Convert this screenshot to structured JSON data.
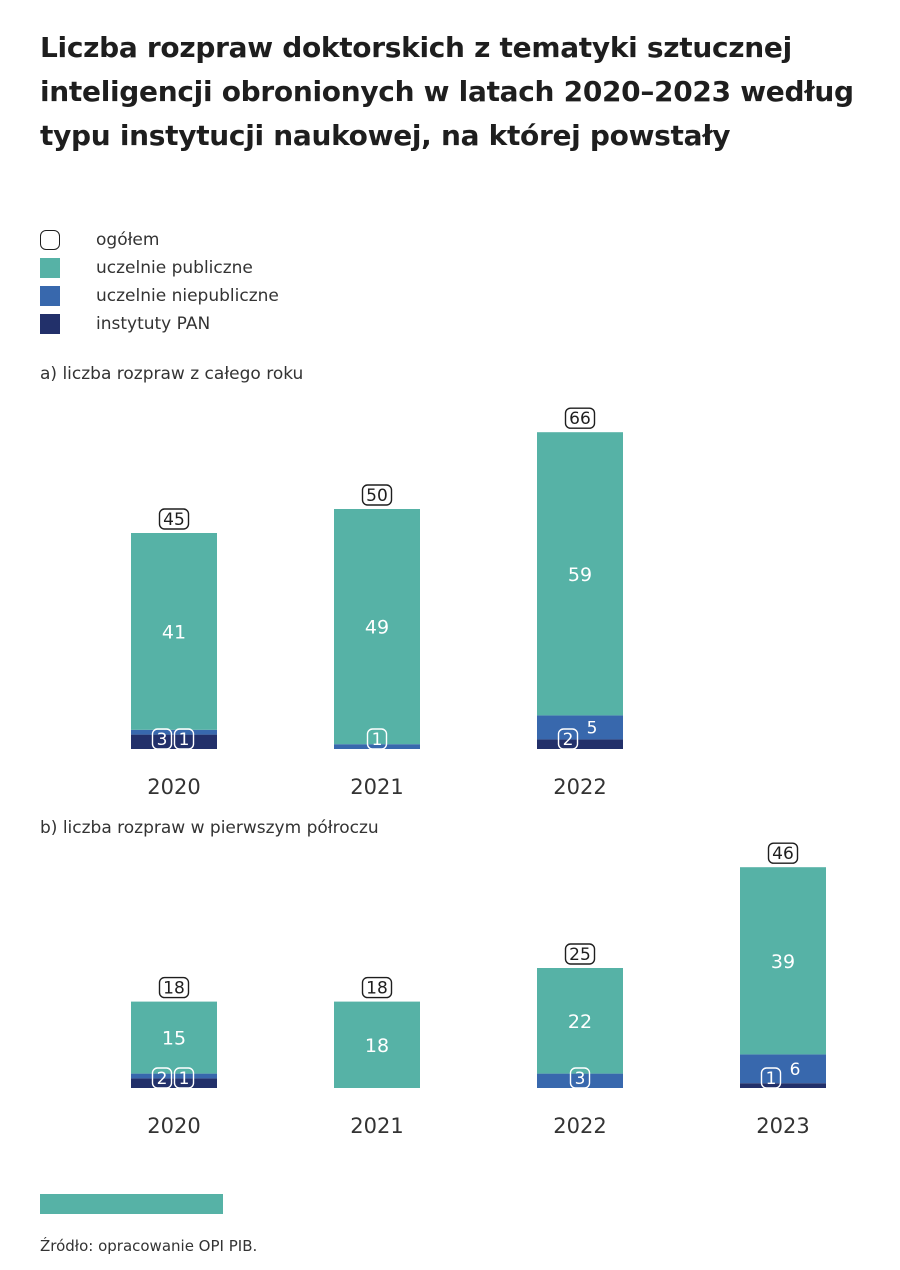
{
  "title": "Liczba rozpraw doktorskich z tematyki sztucznej inteligencji obronionych w latach 2020–2023 według typu instytucji naukowej, na której powstały",
  "legend": [
    {
      "label": "ogółem",
      "style": "outline"
    },
    {
      "label": "uczelnie publiczne",
      "color": "#56b2a6"
    },
    {
      "label": "uczelnie niepubliczne",
      "color": "#3868ad"
    },
    {
      "label": "instytuty PAN",
      "color": "#22306a"
    }
  ],
  "colors": {
    "public": "#56b2a6",
    "nonpublic": "#3868ad",
    "pan": "#22306a"
  },
  "source": "Źródło: opracowanie OPI PIB.",
  "chart_data": [
    {
      "type": "bar",
      "stacked": true,
      "title": "a) liczba rozpraw z całego roku",
      "categories": [
        "2020",
        "2021",
        "2022"
      ],
      "series": [
        {
          "name": "instytuty PAN",
          "values": [
            3,
            0,
            2
          ]
        },
        {
          "name": "uczelnie niepubliczne",
          "values": [
            1,
            1,
            5
          ]
        },
        {
          "name": "uczelnie publiczne",
          "values": [
            41,
            49,
            59
          ]
        }
      ],
      "totals": [
        45,
        50,
        66
      ],
      "legend_position": "top-left"
    },
    {
      "type": "bar",
      "stacked": true,
      "title": "b) liczba rozpraw w pierwszym półroczu",
      "categories": [
        "2020",
        "2021",
        "2022",
        "2023"
      ],
      "series": [
        {
          "name": "instytuty PAN",
          "values": [
            2,
            0,
            0,
            1
          ]
        },
        {
          "name": "uczelnie niepubliczne",
          "values": [
            1,
            0,
            3,
            6
          ]
        },
        {
          "name": "uczelnie publiczne",
          "values": [
            15,
            18,
            22,
            39
          ]
        }
      ],
      "totals": [
        18,
        18,
        25,
        46
      ],
      "legend_position": "top-left"
    }
  ]
}
